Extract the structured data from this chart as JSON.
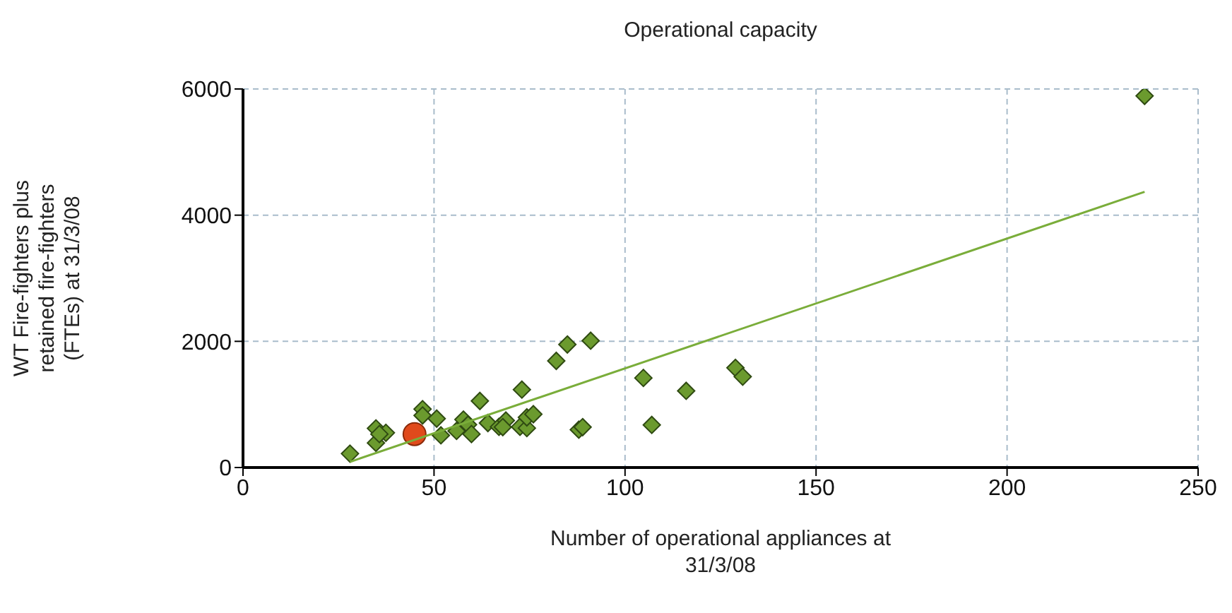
{
  "chart_data": {
    "type": "scatter",
    "title": "Operational capacity",
    "xlabel": "Number of operational appliances at\n31/3/08",
    "ylabel": "WT Fire-fighters plus\nretained fire-fighters\n(FTEs) at 31/3/08",
    "xlim": [
      0,
      250
    ],
    "xticks": [
      0,
      50,
      100,
      150,
      200,
      250
    ],
    "ylim": [
      0,
      6000
    ],
    "yticks": [
      0,
      2000,
      4000,
      6000
    ],
    "grid": true,
    "series": [
      {
        "marker": "diamond",
        "color": "#6b9a2e",
        "x": [
          28,
          34.8,
          34.8,
          37.4,
          35.7,
          47,
          47,
          50.7,
          51.8,
          55.9,
          57.7,
          58.9,
          59.8,
          62,
          64.1,
          67,
          68.8,
          68,
          72.5,
          74.3,
          73,
          74.3,
          76,
          82,
          84.9,
          91,
          87.9,
          88.9,
          104.8,
          107,
          116,
          128.9,
          130.8,
          236
        ],
        "values": [
          220,
          620,
          390,
          550,
          530,
          925,
          825,
          775,
          510,
          580,
          760,
          680,
          530,
          1055,
          705,
          645,
          745,
          640,
          645,
          625,
          1235,
          795,
          845,
          1690,
          1950,
          2010,
          600,
          640,
          1420,
          675,
          1215,
          1580,
          1440,
          5890
        ]
      },
      {
        "marker": "circle",
        "color": "#e04a1c",
        "x": [
          44.9
        ],
        "values": [
          530
        ]
      },
      {
        "type": "line",
        "marker": "none",
        "color": "#7aad3a",
        "x": [
          28,
          236
        ],
        "values": [
          90,
          4370
        ]
      }
    ]
  }
}
